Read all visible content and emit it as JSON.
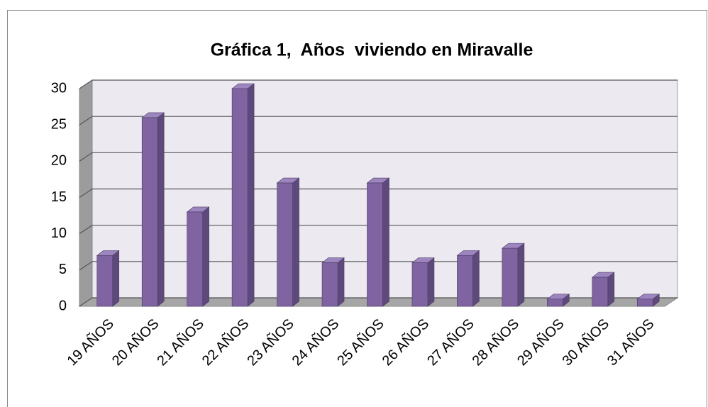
{
  "chart_data": {
    "type": "bar3d",
    "title": "Gráfica 1,  Años  viviendo en Miravalle",
    "categories": [
      "19 AÑOS",
      "20 AÑOS",
      "21 AÑOS",
      "22 AÑOS",
      "23 AÑOS",
      "24 AÑOS",
      "25 AÑOS",
      "26 AÑOS",
      "27 AÑOS",
      "28 AÑOS",
      "29 AÑOS",
      "30 AÑOS",
      "31 AÑOS"
    ],
    "values": [
      7,
      26,
      13,
      30,
      17,
      6,
      17,
      6,
      7,
      8,
      1,
      4,
      1
    ],
    "color": "#8064a2",
    "ylim": [
      0,
      30
    ],
    "yticks": [
      0,
      5,
      10,
      15,
      20,
      25,
      30
    ],
    "grid": true
  }
}
